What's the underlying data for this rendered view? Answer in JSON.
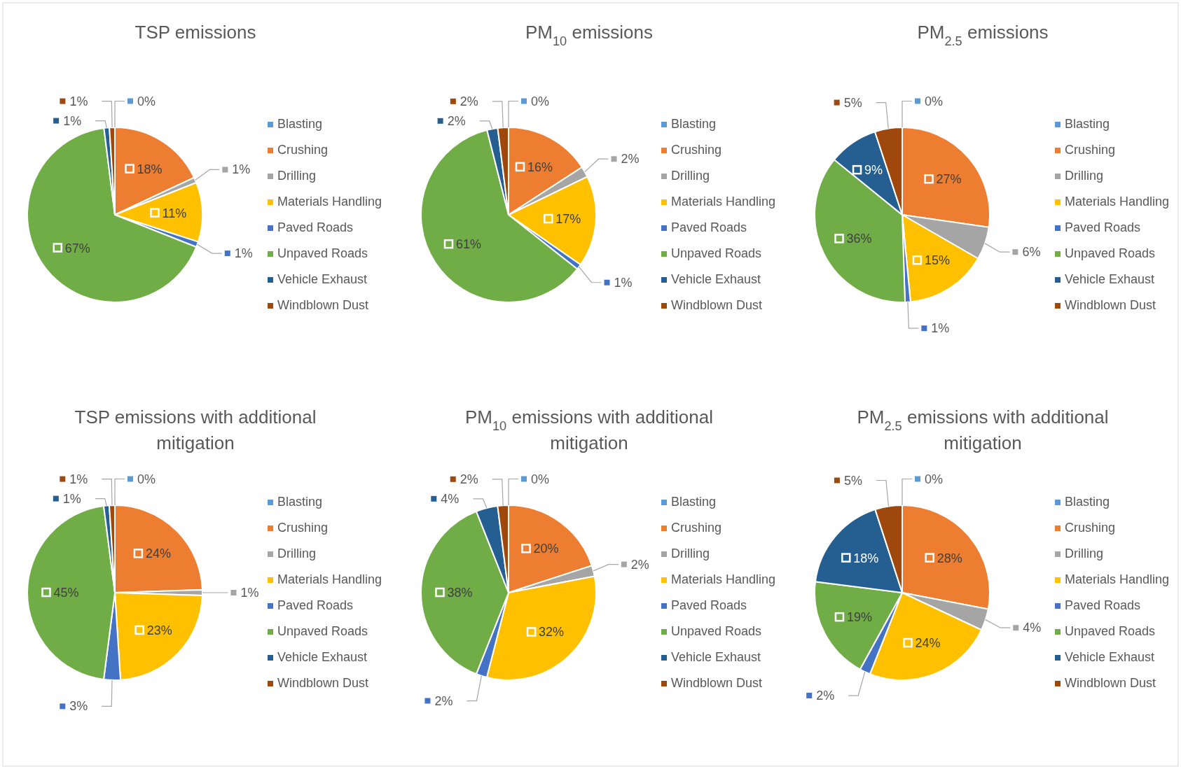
{
  "chart_data": [
    {
      "type": "pie",
      "title": "TSP emissions",
      "categories": [
        "Blasting",
        "Crushing",
        "Drilling",
        "Materials Handling",
        "Paved Roads",
        "Unpaved Roads",
        "Vehicle Exhaust",
        "Windblown Dust"
      ],
      "values": [
        0,
        18,
        1,
        11,
        1,
        67,
        1,
        1
      ],
      "value_labels": [
        "0%",
        "18%",
        "1%",
        "11%",
        "1%",
        "67%",
        "1%",
        "1%"
      ],
      "colors": [
        "#5b9bd5",
        "#ed7d31",
        "#a5a5a5",
        "#ffc000",
        "#4472c4",
        "#70ad47",
        "#255e91",
        "#9e480e"
      ],
      "legend": "right"
    },
    {
      "type": "pie",
      "title": "PM$_{10}$ emissions",
      "categories": [
        "Blasting",
        "Crushing",
        "Drilling",
        "Materials Handling",
        "Paved Roads",
        "Unpaved Roads",
        "Vehicle Exhaust",
        "Windblown Dust"
      ],
      "values": [
        0,
        16,
        2,
        17,
        1,
        61,
        2,
        2
      ],
      "value_labels": [
        "0%",
        "16%",
        "2%",
        "17%",
        "1%",
        "61%",
        "2%",
        "2%"
      ],
      "colors": [
        "#5b9bd5",
        "#ed7d31",
        "#a5a5a5",
        "#ffc000",
        "#4472c4",
        "#70ad47",
        "#255e91",
        "#9e480e"
      ],
      "legend": "right"
    },
    {
      "type": "pie",
      "title": "PM$_{2.5}$ emissions",
      "categories": [
        "Blasting",
        "Crushing",
        "Drilling",
        "Materials Handling",
        "Paved Roads",
        "Unpaved Roads",
        "Vehicle Exhaust",
        "Windblown Dust"
      ],
      "values": [
        0,
        27,
        6,
        15,
        1,
        36,
        9,
        5
      ],
      "value_labels": [
        "0%",
        "27%",
        "6%",
        "15%",
        "1%",
        "36%",
        "9%",
        "5%"
      ],
      "colors": [
        "#5b9bd5",
        "#ed7d31",
        "#a5a5a5",
        "#ffc000",
        "#4472c4",
        "#70ad47",
        "#255e91",
        "#9e480e"
      ],
      "legend": "right"
    },
    {
      "type": "pie",
      "title": "TSP emissions with additional mitigation",
      "categories": [
        "Blasting",
        "Crushing",
        "Drilling",
        "Materials Handling",
        "Paved Roads",
        "Unpaved Roads",
        "Vehicle Exhaust",
        "Windblown Dust"
      ],
      "values": [
        0,
        24,
        1,
        23,
        3,
        45,
        1,
        1
      ],
      "value_labels": [
        "0%",
        "24%",
        "1%",
        "23%",
        "3%",
        "45%",
        "1%",
        "1%"
      ],
      "colors": [
        "#5b9bd5",
        "#ed7d31",
        "#a5a5a5",
        "#ffc000",
        "#4472c4",
        "#70ad47",
        "#255e91",
        "#9e480e"
      ],
      "legend": "right"
    },
    {
      "type": "pie",
      "title": "PM$_{10}$ emissions with additional mitigation",
      "categories": [
        "Blasting",
        "Crushing",
        "Drilling",
        "Materials Handling",
        "Paved Roads",
        "Unpaved Roads",
        "Vehicle Exhaust",
        "Windblown Dust"
      ],
      "values": [
        0,
        20,
        2,
        32,
        2,
        38,
        4,
        2
      ],
      "value_labels": [
        "0%",
        "20%",
        "2%",
        "32%",
        "2%",
        "38%",
        "4%",
        "2%"
      ],
      "colors": [
        "#5b9bd5",
        "#ed7d31",
        "#a5a5a5",
        "#ffc000",
        "#4472c4",
        "#70ad47",
        "#255e91",
        "#9e480e"
      ],
      "legend": "right"
    },
    {
      "type": "pie",
      "title": "PM$_{2.5}$ emissions with additional mitigation",
      "categories": [
        "Blasting",
        "Crushing",
        "Drilling",
        "Materials Handling",
        "Paved Roads",
        "Unpaved Roads",
        "Vehicle Exhaust",
        "Windblown Dust"
      ],
      "values": [
        0,
        28,
        4,
        24,
        2,
        19,
        18,
        5
      ],
      "value_labels": [
        "0%",
        "28%",
        "4%",
        "24%",
        "2%",
        "19%",
        "18%",
        "5%"
      ],
      "colors": [
        "#5b9bd5",
        "#ed7d31",
        "#a5a5a5",
        "#ffc000",
        "#4472c4",
        "#70ad47",
        "#255e91",
        "#9e480e"
      ],
      "legend": "right"
    }
  ]
}
